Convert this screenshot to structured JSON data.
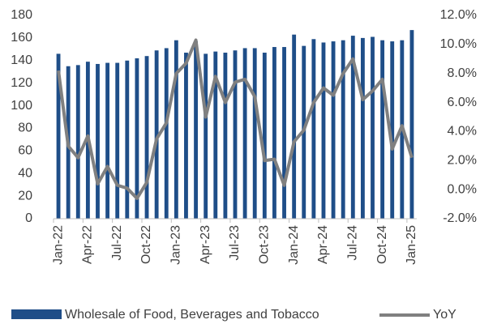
{
  "chart_data": {
    "type": "bar_line",
    "categories": [
      "Jan-22",
      null,
      null,
      "Apr-22",
      null,
      null,
      "Jul-22",
      null,
      null,
      "Oct-22",
      null,
      null,
      "Jan-23",
      null,
      null,
      "Apr-23",
      null,
      null,
      "Jul-23",
      null,
      null,
      "Oct-23",
      null,
      null,
      "Jan-24",
      null,
      null,
      "Apr-24",
      null,
      null,
      "Jul-24",
      null,
      null,
      "Oct-24",
      null,
      null,
      "Jan-25"
    ],
    "series": [
      {
        "name": "Wholesale of Food, Beverages and Tobacco",
        "color": "#1f4e88",
        "type": "bar",
        "values": [
          146,
          135,
          136,
          139,
          137,
          138,
          138,
          140,
          142,
          144,
          149,
          151,
          158,
          147,
          157,
          146,
          148,
          147,
          149,
          151,
          151,
          147,
          152,
          152,
          163,
          153,
          159,
          156,
          157,
          158,
          162,
          160,
          161,
          158,
          157,
          158,
          167
        ]
      },
      {
        "name": "YoY",
        "color": "#808080",
        "type": "line",
        "axis": "y2",
        "values": [
          8.2,
          3.0,
          2.2,
          3.7,
          0.4,
          1.6,
          0.3,
          0.1,
          -0.6,
          0.5,
          3.5,
          4.6,
          8.0,
          8.7,
          10.3,
          5.0,
          7.8,
          6.0,
          7.4,
          7.6,
          6.4,
          2.0,
          2.1,
          0.3,
          3.3,
          4.1,
          6.0,
          7.0,
          6.5,
          8.0,
          9.0,
          6.2,
          6.8,
          7.6,
          2.8,
          4.4,
          2.2
        ]
      }
    ],
    "ylim": [
      0,
      180
    ],
    "yticks": [
      0,
      20,
      40,
      60,
      80,
      100,
      120,
      140,
      160,
      180
    ],
    "y2lim": [
      -2,
      12
    ],
    "y2ticks": [
      {
        "value": -2,
        "label": "-2.0%"
      },
      {
        "value": 0,
        "label": "0.0%"
      },
      {
        "value": 2,
        "label": "2.0%"
      },
      {
        "value": 4,
        "label": "4.0%"
      },
      {
        "value": 6,
        "label": "6.0%"
      },
      {
        "value": 8,
        "label": "8.0%"
      },
      {
        "value": 10,
        "label": "10.0%"
      },
      {
        "value": 12,
        "label": "12.0%"
      }
    ],
    "grid": false,
    "legend": "bottom"
  }
}
